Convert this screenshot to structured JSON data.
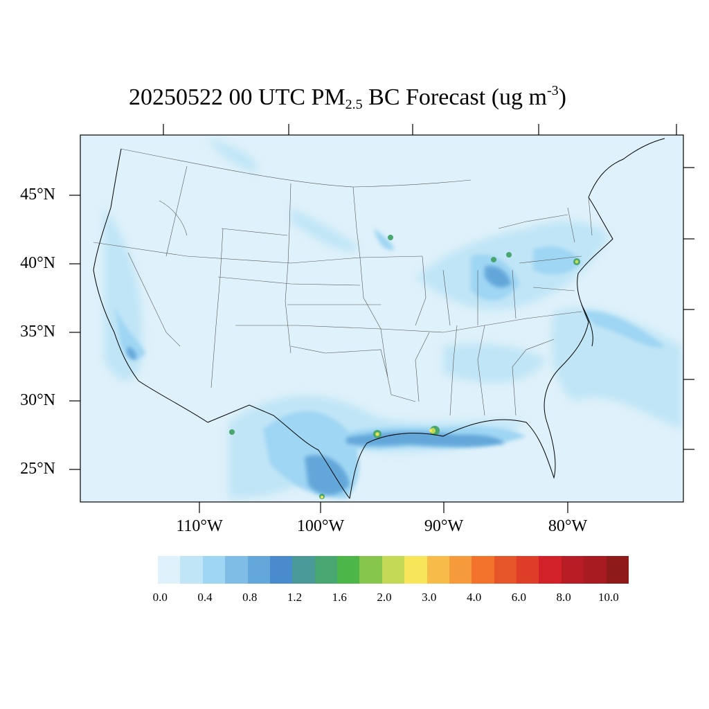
{
  "title": {
    "prefix": "20250522 00 UTC PM",
    "subscript": "2.5",
    "middle": " BC Forecast (ug m",
    "superscript": "-3",
    "suffix": ")"
  },
  "map": {
    "projection": "lambert-conformal",
    "region": "Contiguous United States",
    "background_color": "#dff1fa",
    "lat_labels": [
      "45°N",
      "40°N",
      "35°N",
      "30°N",
      "25°N"
    ],
    "lon_labels": [
      "110°W",
      "100°W",
      "90°W",
      "80°W"
    ]
  },
  "colorbar": {
    "colors": [
      "#dff1fa",
      "#c0e5f6",
      "#9fd6f3",
      "#80bde6",
      "#64a7da",
      "#4a8bcd",
      "#4a9a9a",
      "#48a670",
      "#4cb648",
      "#86c64c",
      "#c4d955",
      "#f7e65a",
      "#f7bb4a",
      "#f59b3c",
      "#f3722c",
      "#e6552a",
      "#de3d28",
      "#d22128",
      "#b81c24",
      "#a81b20",
      "#8f1a1a"
    ],
    "tick_labels": [
      "0.0",
      "0.4",
      "0.8",
      "1.2",
      "1.6",
      "2.0",
      "3.0",
      "4.0",
      "6.0",
      "8.0",
      "10.0"
    ]
  }
}
